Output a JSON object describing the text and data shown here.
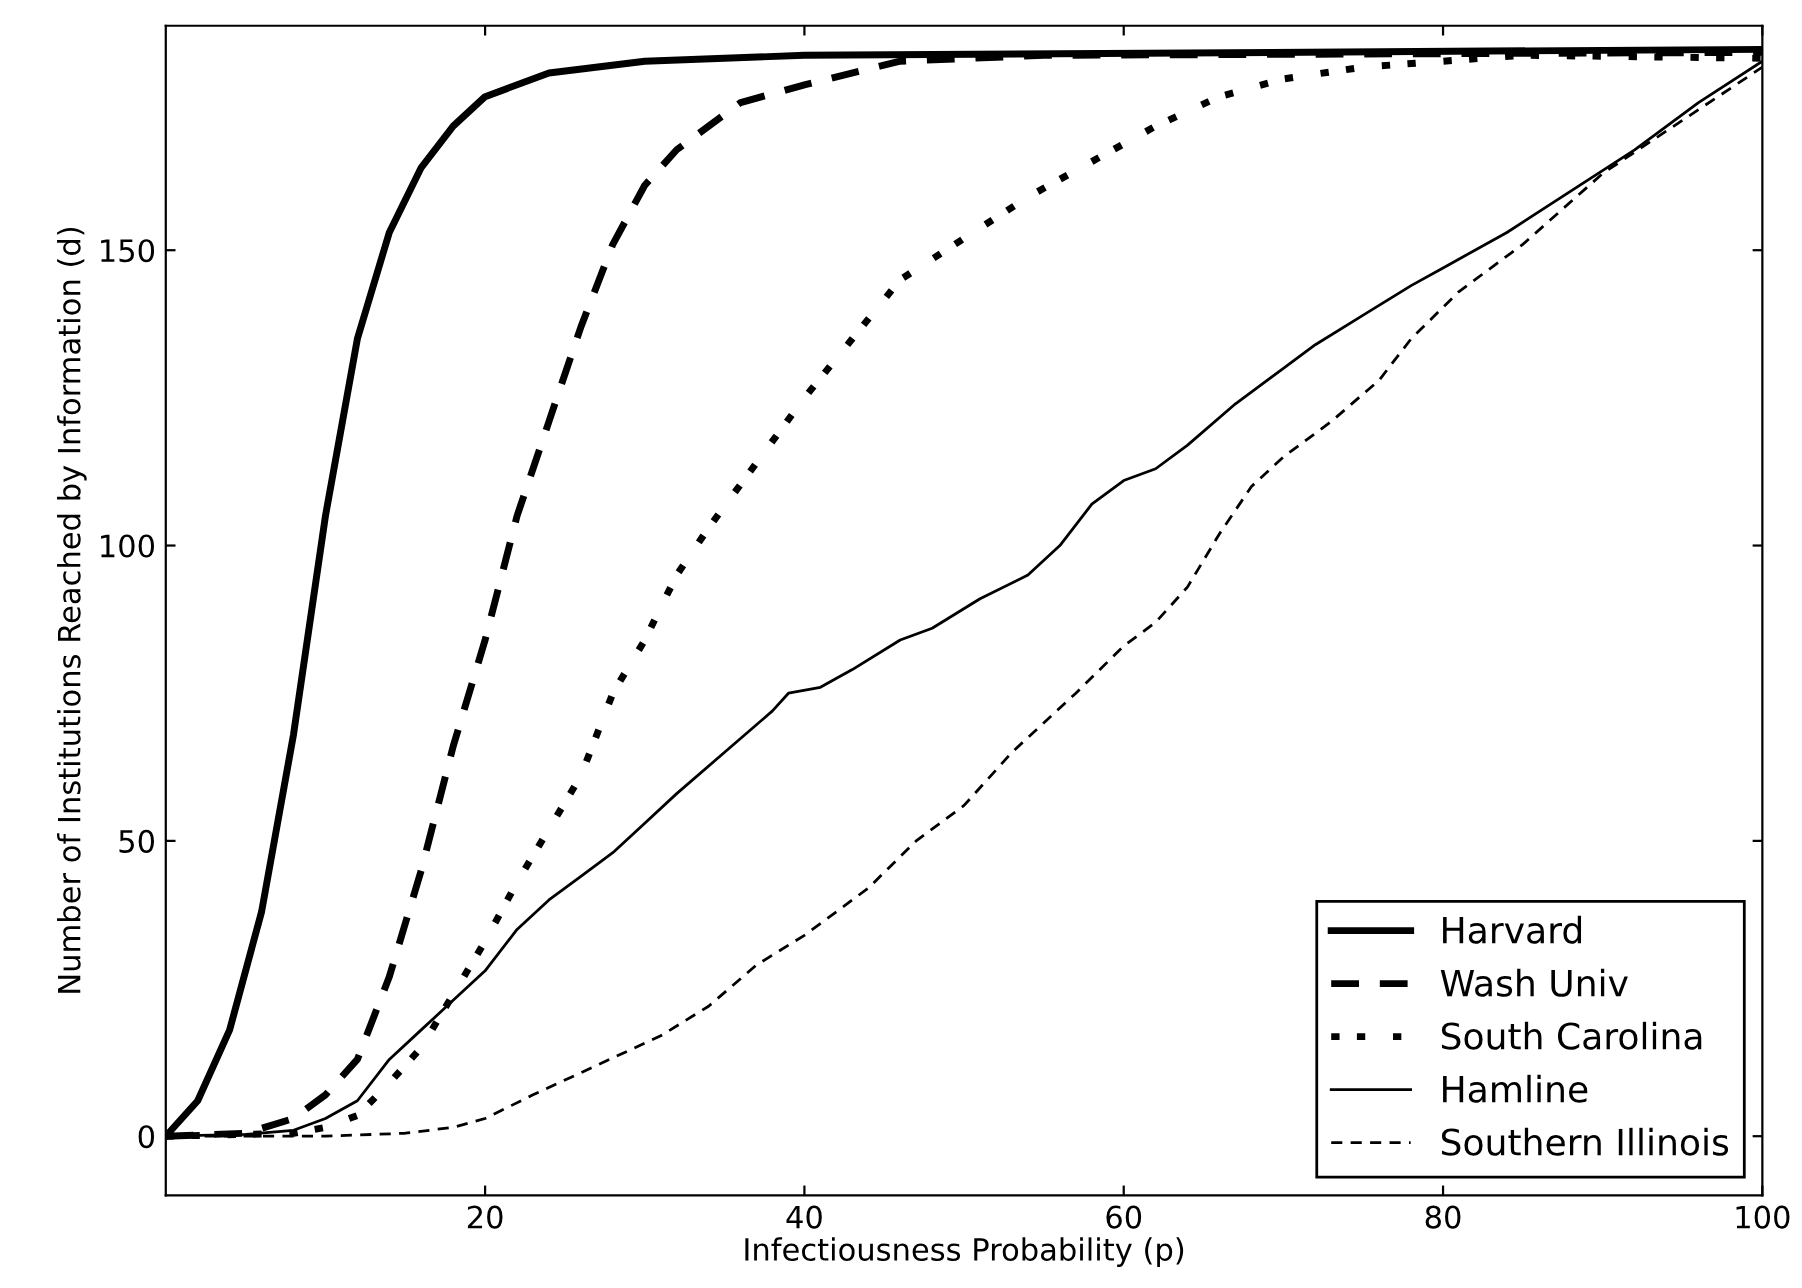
{
  "chart_data": {
    "type": "line",
    "xlabel": "Infectiousness Probability (p)",
    "ylabel": "Number of Institutions Reached by Information (d)",
    "xlim": [
      0,
      100
    ],
    "xticks": [
      20,
      40,
      60,
      80,
      100
    ],
    "ylim": [
      -10,
      188
    ],
    "yticks": [
      0,
      50,
      100,
      150
    ],
    "grid": false,
    "legend": "bottom right",
    "marker": "none",
    "series": [
      {
        "name": "Harvard",
        "color": "#000000",
        "line_style": "solid",
        "x": [
          0,
          2,
          4,
          6,
          8,
          10,
          12,
          14,
          16,
          18,
          20,
          24,
          30,
          40,
          100
        ],
        "values": [
          0,
          6,
          18,
          38,
          68,
          105,
          135,
          153,
          164,
          171,
          176,
          180,
          182,
          183,
          184
        ]
      },
      {
        "name": "Wash Univ",
        "color": "#000000",
        "line_style": "dashed",
        "x": [
          0,
          5,
          8,
          10,
          12,
          14,
          16,
          18,
          20,
          22,
          24,
          26,
          28,
          30,
          32,
          36,
          40,
          46,
          55,
          100
        ],
        "values": [
          0,
          0.5,
          3,
          7,
          13,
          27,
          45,
          66,
          84,
          105,
          121,
          137,
          151,
          161,
          167,
          175,
          178,
          182,
          183,
          183.5
        ]
      },
      {
        "name": "South Carolina",
        "color": "#000000",
        "line_style": "dotted",
        "x": [
          0,
          8,
          10,
          12,
          14,
          16,
          18,
          20,
          22,
          24,
          26,
          28,
          30,
          32,
          34,
          37,
          40,
          43,
          46,
          50,
          54,
          58,
          62,
          66,
          70,
          75,
          80,
          85,
          100
        ],
        "values": [
          0,
          0.5,
          1.5,
          3.5,
          9,
          15,
          24,
          33,
          43,
          52,
          61,
          75,
          84,
          95,
          103,
          114,
          125,
          135,
          145,
          152,
          159,
          165,
          171,
          176,
          179,
          181,
          182,
          183,
          182.5
        ]
      },
      {
        "name": "Hamline",
        "color": "#000000",
        "line_style": "solid",
        "x": [
          0,
          5,
          8,
          10,
          12,
          14,
          16,
          18,
          20,
          22,
          24,
          26,
          28,
          30,
          32,
          35,
          38,
          39,
          41,
          43,
          46,
          48,
          51,
          54,
          56,
          58,
          60,
          62,
          64,
          67,
          70,
          72,
          75,
          78,
          80,
          84,
          88,
          92,
          96,
          100
        ],
        "values": [
          0,
          0.3,
          1,
          3,
          6,
          13,
          18,
          23,
          28,
          35,
          40,
          44,
          48,
          53,
          58,
          65,
          72,
          75,
          76,
          79,
          84,
          86,
          91,
          95,
          100,
          107,
          111,
          113,
          117,
          124,
          130,
          134,
          139,
          144,
          147,
          153,
          160,
          167,
          175,
          182
        ]
      },
      {
        "name": "Southern Illinois",
        "color": "#000000",
        "line_style": "dashed",
        "x": [
          0,
          10,
          15,
          18,
          20,
          23,
          27,
          31,
          34,
          37,
          40,
          44,
          47,
          50,
          53,
          57,
          60,
          62,
          64,
          66,
          68,
          70,
          73,
          76,
          78,
          81,
          85,
          90,
          95,
          100
        ],
        "values": [
          0,
          0,
          0.5,
          1.5,
          3,
          7,
          12,
          17,
          22,
          29,
          34,
          42,
          50,
          56,
          65,
          75,
          83,
          87,
          93,
          102,
          110,
          115,
          121,
          128,
          135,
          143,
          151,
          163,
          172,
          181
        ]
      }
    ]
  }
}
